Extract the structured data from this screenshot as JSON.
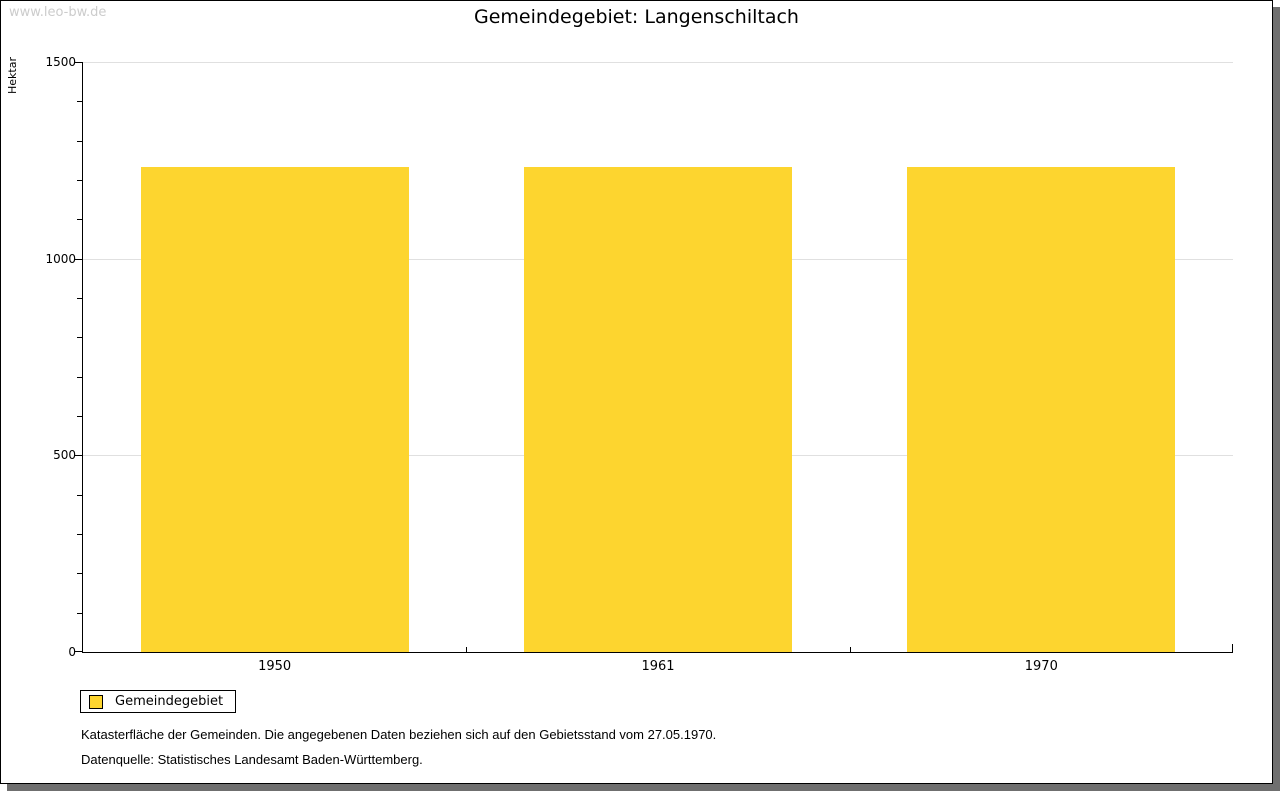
{
  "watermark": "www.leo-bw.de",
  "chart_data": {
    "type": "bar",
    "title": "Gemeindegebiet: Langenschiltach",
    "categories": [
      "1950",
      "1961",
      "1970"
    ],
    "series": [
      {
        "name": "Gemeindegebiet",
        "values": [
          1234,
          1234,
          1234
        ]
      }
    ],
    "xlabel": "",
    "ylabel": "Hektar",
    "ylim": [
      0,
      1500
    ],
    "yticks_major": [
      0,
      500,
      1000,
      1500
    ],
    "ytick_minor_step": 100,
    "grid": true,
    "legend_position": "bottom-left"
  },
  "footnotes": [
    "Katasterfläche der Gemeinden. Die angegebenen Daten beziehen sich auf den Gebietsstand vom 27.05.1970.",
    "Datenquelle: Statistisches Landesamt Baden-Württemberg."
  ],
  "colors": {
    "bar": "#FDD52F",
    "gridline": "#E0E0E0",
    "axis": "#000000",
    "watermark": "#CCCCCC",
    "frame_shadow": "#6F6F6F"
  }
}
